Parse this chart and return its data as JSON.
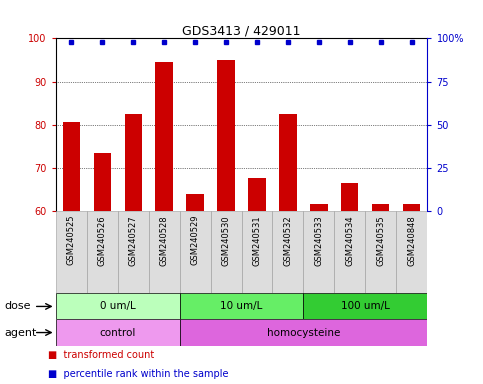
{
  "title": "GDS3413 / 429011",
  "samples": [
    "GSM240525",
    "GSM240526",
    "GSM240527",
    "GSM240528",
    "GSM240529",
    "GSM240530",
    "GSM240531",
    "GSM240532",
    "GSM240533",
    "GSM240534",
    "GSM240535",
    "GSM240848"
  ],
  "bar_values": [
    80.5,
    73.5,
    82.5,
    94.5,
    64.0,
    95.0,
    67.5,
    82.5,
    61.5,
    66.5,
    61.5,
    61.5
  ],
  "percentile_values": [
    98,
    98,
    98,
    98,
    98,
    98,
    98,
    98,
    98,
    98,
    98,
    98
  ],
  "bar_color": "#cc0000",
  "dot_color": "#0000cc",
  "ylim_left": [
    60,
    100
  ],
  "ylim_right": [
    0,
    100
  ],
  "yticks_left": [
    60,
    70,
    80,
    90,
    100
  ],
  "yticks_right": [
    0,
    25,
    50,
    75,
    100
  ],
  "ytick_labels_right": [
    "0",
    "25",
    "50",
    "75",
    "100%"
  ],
  "grid_yticks": [
    70,
    80,
    90
  ],
  "dose_groups": [
    {
      "label": "0 um/L",
      "start": 0,
      "end": 4,
      "color": "#bbffbb"
    },
    {
      "label": "10 um/L",
      "start": 4,
      "end": 8,
      "color": "#66ee66"
    },
    {
      "label": "100 um/L",
      "start": 8,
      "end": 12,
      "color": "#33cc33"
    }
  ],
  "agent_groups": [
    {
      "label": "control",
      "start": 0,
      "end": 4,
      "color": "#ee99ee"
    },
    {
      "label": "homocysteine",
      "start": 4,
      "end": 12,
      "color": "#dd66dd"
    }
  ],
  "dose_label": "dose",
  "agent_label": "agent",
  "legend_items": [
    {
      "label": "transformed count",
      "color": "#cc0000"
    },
    {
      "label": "percentile rank within the sample",
      "color": "#0000cc"
    }
  ],
  "bar_width": 0.55,
  "background_color": "#ffffff",
  "tick_label_color_left": "#cc0000",
  "tick_label_color_right": "#0000cc"
}
